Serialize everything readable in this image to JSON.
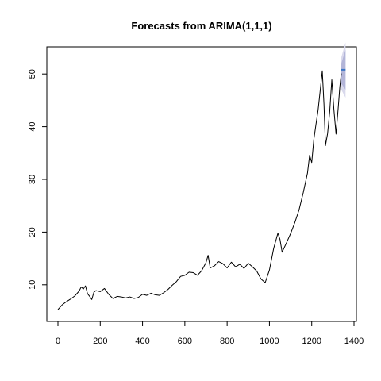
{
  "chart_data": {
    "type": "line",
    "title": "Forecasts from ARIMA(1,1,1)",
    "xlabel": "",
    "ylabel": "",
    "xlim": [
      0,
      1400
    ],
    "ylim": [
      5,
      55
    ],
    "x_ticks": [
      "0",
      "200",
      "400",
      "600",
      "800",
      "1000",
      "1200",
      "1400"
    ],
    "y_ticks": [
      "10",
      "20",
      "30",
      "40",
      "50"
    ],
    "grid": false,
    "series": [
      {
        "role": "observed",
        "color": "#000000",
        "points": [
          [
            0,
            5.3
          ],
          [
            20,
            6.2
          ],
          [
            40,
            6.8
          ],
          [
            60,
            7.3
          ],
          [
            80,
            7.9
          ],
          [
            100,
            8.8
          ],
          [
            110,
            9.6
          ],
          [
            120,
            9.2
          ],
          [
            130,
            9.8
          ],
          [
            140,
            8.3
          ],
          [
            150,
            7.8
          ],
          [
            160,
            7.2
          ],
          [
            170,
            8.6
          ],
          [
            180,
            8.9
          ],
          [
            200,
            8.7
          ],
          [
            220,
            9.3
          ],
          [
            240,
            8.2
          ],
          [
            260,
            7.4
          ],
          [
            280,
            7.8
          ],
          [
            300,
            7.7
          ],
          [
            320,
            7.5
          ],
          [
            340,
            7.7
          ],
          [
            360,
            7.4
          ],
          [
            380,
            7.6
          ],
          [
            400,
            8.2
          ],
          [
            420,
            8.0
          ],
          [
            440,
            8.4
          ],
          [
            460,
            8.1
          ],
          [
            480,
            8.0
          ],
          [
            500,
            8.5
          ],
          [
            520,
            9.1
          ],
          [
            540,
            9.9
          ],
          [
            560,
            10.6
          ],
          [
            580,
            11.6
          ],
          [
            600,
            11.8
          ],
          [
            620,
            12.4
          ],
          [
            640,
            12.3
          ],
          [
            660,
            11.8
          ],
          [
            680,
            12.7
          ],
          [
            700,
            14.2
          ],
          [
            710,
            15.6
          ],
          [
            720,
            13.2
          ],
          [
            740,
            13.6
          ],
          [
            760,
            14.4
          ],
          [
            780,
            14.0
          ],
          [
            800,
            13.2
          ],
          [
            820,
            14.3
          ],
          [
            840,
            13.4
          ],
          [
            860,
            13.9
          ],
          [
            880,
            13.1
          ],
          [
            900,
            14.1
          ],
          [
            920,
            13.4
          ],
          [
            940,
            12.6
          ],
          [
            960,
            11.1
          ],
          [
            980,
            10.4
          ],
          [
            1000,
            12.8
          ],
          [
            1020,
            16.9
          ],
          [
            1040,
            19.8
          ],
          [
            1050,
            18.6
          ],
          [
            1060,
            16.2
          ],
          [
            1080,
            17.9
          ],
          [
            1100,
            19.7
          ],
          [
            1120,
            21.8
          ],
          [
            1140,
            24.2
          ],
          [
            1160,
            27.5
          ],
          [
            1180,
            31.2
          ],
          [
            1190,
            34.6
          ],
          [
            1200,
            33.2
          ],
          [
            1210,
            37.6
          ],
          [
            1220,
            40.4
          ],
          [
            1230,
            43.1
          ],
          [
            1240,
            46.8
          ],
          [
            1250,
            50.6
          ],
          [
            1258,
            44.2
          ],
          [
            1265,
            36.4
          ],
          [
            1275,
            38.7
          ],
          [
            1285,
            42.8
          ],
          [
            1295,
            48.9
          ],
          [
            1305,
            43.2
          ],
          [
            1315,
            38.6
          ],
          [
            1325,
            43.4
          ],
          [
            1333,
            47.6
          ],
          [
            1340,
            50.1
          ]
        ]
      },
      {
        "role": "forecast",
        "color": "#3a75c4",
        "points": [
          [
            1340,
            50.8
          ],
          [
            1360,
            50.8
          ]
        ]
      }
    ],
    "prediction_band": {
      "outer_color": "#d9d9ec",
      "inner_color": "#b3b5d8",
      "x": [
        1340,
        1360
      ],
      "outer_lower": [
        47.0,
        45.5
      ],
      "outer_upper": [
        53.2,
        56.0
      ],
      "inner_lower": [
        48.2,
        47.0
      ],
      "inner_upper": [
        52.0,
        54.6
      ]
    }
  }
}
